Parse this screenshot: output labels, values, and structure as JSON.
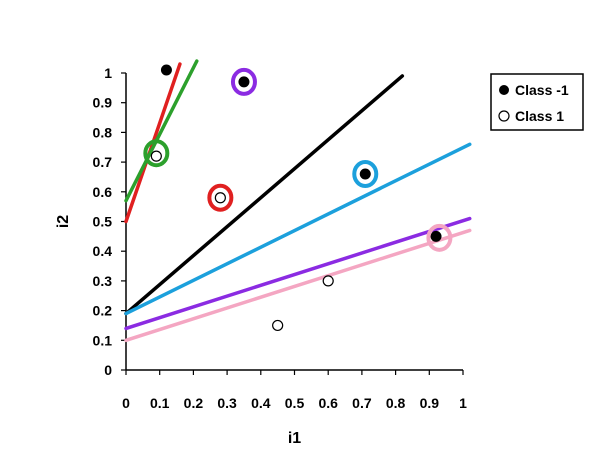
{
  "chart_data": {
    "type": "scatter",
    "title": "",
    "xlabel": "i1",
    "ylabel": "i2",
    "xlim": [
      0,
      1
    ],
    "ylim": [
      0,
      1
    ],
    "grid": false,
    "legend_position": "top-right",
    "x_ticks": [
      "0",
      "0.1",
      "0.2",
      "0.3",
      "0.4",
      "0.5",
      "0.6",
      "0.7",
      "0.8",
      "0.9",
      "1"
    ],
    "y_ticks": [
      "0",
      "0.1",
      "0.2",
      "0.3",
      "0.4",
      "0.5",
      "0.6",
      "0.7",
      "0.8",
      "0.9",
      "1"
    ],
    "series": [
      {
        "name": "Class -1",
        "marker": "filled-circle",
        "color": "#000000",
        "points": [
          {
            "x": 0.12,
            "y": 1.01
          },
          {
            "x": 0.35,
            "y": 0.97
          },
          {
            "x": 0.71,
            "y": 0.66
          },
          {
            "x": 0.92,
            "y": 0.45
          }
        ]
      },
      {
        "name": "Class 1",
        "marker": "open-circle",
        "color": "#000000",
        "points": [
          {
            "x": 0.09,
            "y": 0.72
          },
          {
            "x": 0.28,
            "y": 0.58
          },
          {
            "x": 0.45,
            "y": 0.15
          },
          {
            "x": 0.6,
            "y": 0.3
          }
        ]
      }
    ],
    "lines": [
      {
        "color": "#e02020",
        "x1": 0.0,
        "y1": 0.5,
        "x2": 0.16,
        "y2": 1.03
      },
      {
        "color": "#2ca02c",
        "x1": 0.0,
        "y1": 0.57,
        "x2": 0.21,
        "y2": 1.04
      },
      {
        "color": "#000000",
        "x1": 0.0,
        "y1": 0.19,
        "x2": 0.82,
        "y2": 0.99
      },
      {
        "color": "#1ca0dc",
        "x1": 0.0,
        "y1": 0.19,
        "x2": 1.02,
        "y2": 0.76
      },
      {
        "color": "#8b2be2",
        "x1": 0.0,
        "y1": 0.14,
        "x2": 1.02,
        "y2": 0.51
      },
      {
        "color": "#f4a6c2",
        "x1": 0.0,
        "y1": 0.1,
        "x2": 1.02,
        "y2": 0.47
      }
    ],
    "highlight_rings": [
      {
        "color": "#2ca02c",
        "x": 0.09,
        "y": 0.73
      },
      {
        "color": "#e02020",
        "x": 0.28,
        "y": 0.58
      },
      {
        "color": "#8b2be2",
        "x": 0.35,
        "y": 0.97
      },
      {
        "color": "#1ca0dc",
        "x": 0.71,
        "y": 0.66
      },
      {
        "color": "#f4a6c2",
        "x": 0.93,
        "y": 0.445
      }
    ]
  }
}
